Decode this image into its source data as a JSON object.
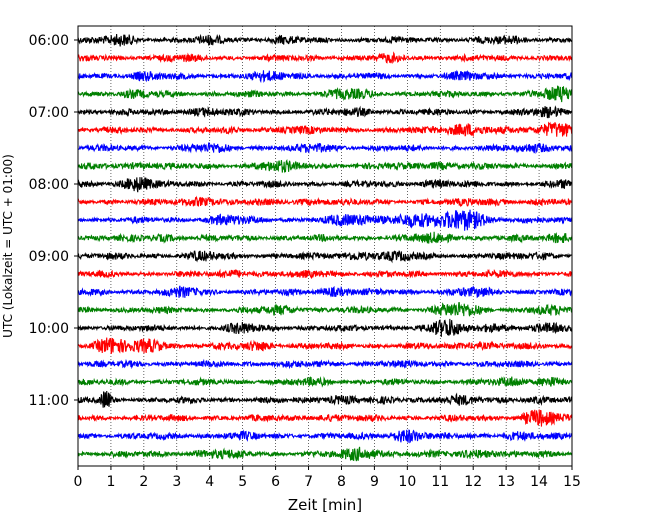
{
  "chart_data": {
    "type": "line",
    "title": "",
    "xlabel": "Zeit  [min]",
    "ylabel": "UTC (Lokalzeit = UTC + 01:00)",
    "xlim": [
      0,
      15
    ],
    "x_ticks": [
      "0",
      "1",
      "2",
      "3",
      "4",
      "5",
      "6",
      "7",
      "8",
      "9",
      "10",
      "11",
      "12",
      "13",
      "14",
      "15"
    ],
    "y_ticks": [
      "06:00",
      "07:00",
      "08:00",
      "09:00",
      "10:00",
      "11:00"
    ],
    "grid": "vertical dotted",
    "trace_colors": [
      "#000000",
      "#ff0000",
      "#0000ff",
      "#008000"
    ],
    "trace_interval_min": 15,
    "rows": [
      {
        "start": "06:00",
        "color": "#000000",
        "bursts": [
          [
            1.3,
            0.5,
            1.6
          ],
          [
            4.1,
            0.4,
            1.4
          ],
          [
            6.2,
            0.4,
            1.3
          ],
          [
            13.0,
            0.5,
            1.3
          ]
        ]
      },
      {
        "start": "06:15",
        "color": "#ff0000",
        "bursts": [
          [
            3.0,
            0.5,
            1.2
          ],
          [
            9.5,
            0.5,
            1.3
          ]
        ]
      },
      {
        "start": "06:30",
        "color": "#0000ff",
        "bursts": [
          [
            2.0,
            0.6,
            1.4
          ],
          [
            5.8,
            0.7,
            1.4
          ],
          [
            11.8,
            0.6,
            1.3
          ]
        ]
      },
      {
        "start": "06:45",
        "color": "#008000",
        "bursts": [
          [
            1.6,
            0.5,
            1.3
          ],
          [
            8.2,
            0.6,
            1.5
          ],
          [
            14.6,
            0.5,
            1.9
          ]
        ]
      },
      {
        "start": "07:00",
        "color": "#000000",
        "bursts": [
          [
            3.8,
            0.6,
            1.4
          ],
          [
            8.5,
            0.6,
            1.3
          ],
          [
            14.3,
            0.5,
            1.5
          ]
        ]
      },
      {
        "start": "07:15",
        "color": "#ff0000",
        "bursts": [
          [
            6.5,
            0.6,
            1.3
          ],
          [
            11.8,
            0.7,
            1.8
          ],
          [
            14.6,
            0.5,
            2.2
          ]
        ]
      },
      {
        "start": "07:30",
        "color": "#0000ff",
        "bursts": [
          [
            4.0,
            0.6,
            1.4
          ],
          [
            7.3,
            0.5,
            1.4
          ],
          [
            14.0,
            0.6,
            1.5
          ]
        ]
      },
      {
        "start": "07:45",
        "color": "#008000",
        "bursts": [
          [
            2.0,
            0.5,
            1.3
          ],
          [
            6.0,
            0.6,
            1.6
          ],
          [
            10.8,
            0.6,
            1.4
          ]
        ]
      },
      {
        "start": "08:00",
        "color": "#000000",
        "bursts": [
          [
            1.8,
            0.4,
            2.2
          ],
          [
            10.8,
            0.5,
            1.4
          ],
          [
            14.8,
            0.3,
            1.4
          ]
        ]
      },
      {
        "start": "08:15",
        "color": "#ff0000",
        "bursts": [
          [
            3.8,
            0.5,
            1.6
          ],
          [
            7.2,
            0.6,
            1.3
          ],
          [
            12.4,
            0.6,
            1.3
          ]
        ]
      },
      {
        "start": "08:30",
        "color": "#0000ff",
        "bursts": [
          [
            4.5,
            0.6,
            1.5
          ],
          [
            8.3,
            0.7,
            1.6
          ],
          [
            10.2,
            1.0,
            1.8
          ],
          [
            11.8,
            0.6,
            2.5
          ]
        ]
      },
      {
        "start": "08:45",
        "color": "#008000",
        "bursts": [
          [
            2.6,
            0.5,
            1.3
          ],
          [
            10.8,
            0.6,
            1.5
          ],
          [
            14.7,
            0.4,
            1.6
          ]
        ]
      },
      {
        "start": "09:00",
        "color": "#000000",
        "bursts": [
          [
            3.8,
            0.5,
            1.4
          ],
          [
            8.6,
            0.6,
            1.5
          ],
          [
            9.8,
            0.5,
            1.4
          ],
          [
            14.0,
            0.5,
            1.3
          ]
        ]
      },
      {
        "start": "09:15",
        "color": "#ff0000",
        "bursts": [
          [
            4.8,
            0.4,
            1.5
          ],
          [
            7.4,
            0.5,
            1.3
          ],
          [
            13.2,
            0.4,
            1.2
          ]
        ]
      },
      {
        "start": "09:30",
        "color": "#0000ff",
        "bursts": [
          [
            3.2,
            0.5,
            1.5
          ],
          [
            7.8,
            0.5,
            1.5
          ],
          [
            12.0,
            0.6,
            1.4
          ]
        ]
      },
      {
        "start": "09:45",
        "color": "#008000",
        "bursts": [
          [
            6.2,
            0.6,
            1.4
          ],
          [
            11.5,
            0.6,
            1.9
          ],
          [
            14.2,
            0.5,
            1.4
          ]
        ]
      },
      {
        "start": "10:00",
        "color": "#000000",
        "bursts": [
          [
            5.0,
            0.4,
            1.6
          ],
          [
            11.2,
            0.4,
            2.3
          ],
          [
            12.5,
            0.4,
            1.6
          ],
          [
            14.5,
            0.5,
            1.4
          ]
        ]
      },
      {
        "start": "10:15",
        "color": "#ff0000",
        "bursts": [
          [
            1.0,
            0.5,
            2.1
          ],
          [
            2.2,
            0.5,
            1.8
          ],
          [
            5.5,
            0.5,
            1.5
          ],
          [
            12.1,
            0.5,
            1.4
          ]
        ]
      },
      {
        "start": "10:30",
        "color": "#0000ff",
        "bursts": [
          [
            6.2,
            0.5,
            1.2
          ],
          [
            9.4,
            0.5,
            1.2
          ]
        ]
      },
      {
        "start": "10:45",
        "color": "#008000",
        "bursts": [
          [
            7.2,
            0.5,
            1.3
          ],
          [
            13.2,
            0.5,
            1.4
          ],
          [
            14.3,
            0.4,
            1.6
          ]
        ]
      },
      {
        "start": "11:00",
        "color": "#000000",
        "bursts": [
          [
            0.85,
            0.15,
            2.4
          ],
          [
            7.9,
            0.5,
            1.5
          ],
          [
            11.4,
            0.6,
            1.5
          ],
          [
            13.9,
            0.5,
            1.3
          ]
        ]
      },
      {
        "start": "11:15",
        "color": "#ff0000",
        "bursts": [
          [
            7.5,
            0.5,
            1.3
          ],
          [
            14.0,
            0.5,
            2.1
          ]
        ]
      },
      {
        "start": "11:30",
        "color": "#0000ff",
        "bursts": [
          [
            4.8,
            0.5,
            1.3
          ],
          [
            10.0,
            0.5,
            1.9
          ],
          [
            13.3,
            0.5,
            1.4
          ]
        ]
      },
      {
        "start": "11:45",
        "color": "#008000",
        "bursts": [
          [
            4.2,
            0.7,
            1.4
          ],
          [
            8.6,
            0.6,
            1.8
          ],
          [
            12.2,
            0.6,
            1.5
          ]
        ]
      }
    ]
  }
}
